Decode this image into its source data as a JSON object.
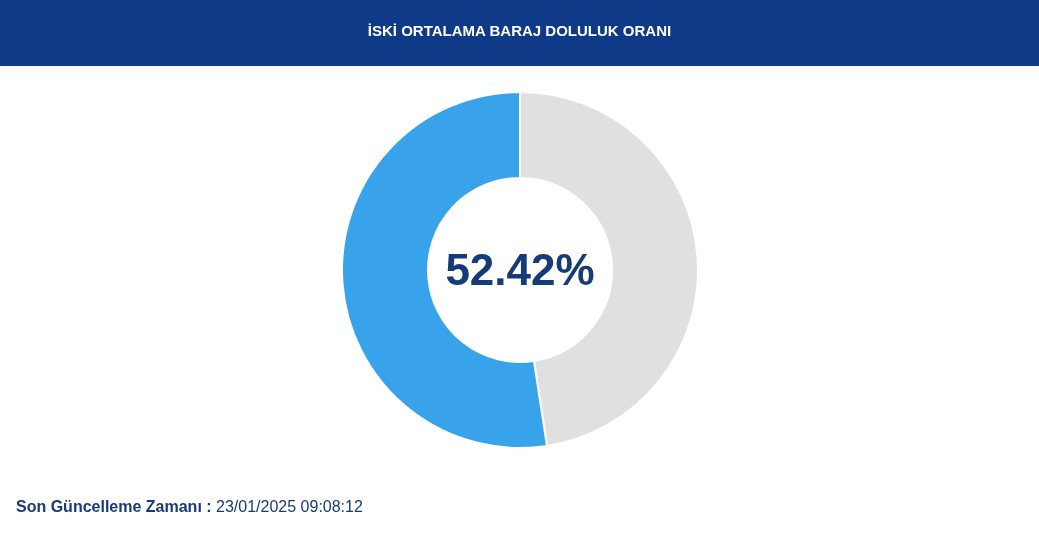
{
  "chart_data": {
    "type": "donut",
    "title": "İSKİ ORTALAMA BARAJ DOLULUK ORANI",
    "categories": [
      null,
      null
    ],
    "values": [
      47.58,
      52.42
    ],
    "colors": [
      "#e0e0e0",
      "#38a3eb"
    ],
    "value_labels": [
      null,
      "52.42%"
    ],
    "annotations": [
      "Son Güncelleme Zamanı : 23/01/2025 09:08:12"
    ]
  }
}
